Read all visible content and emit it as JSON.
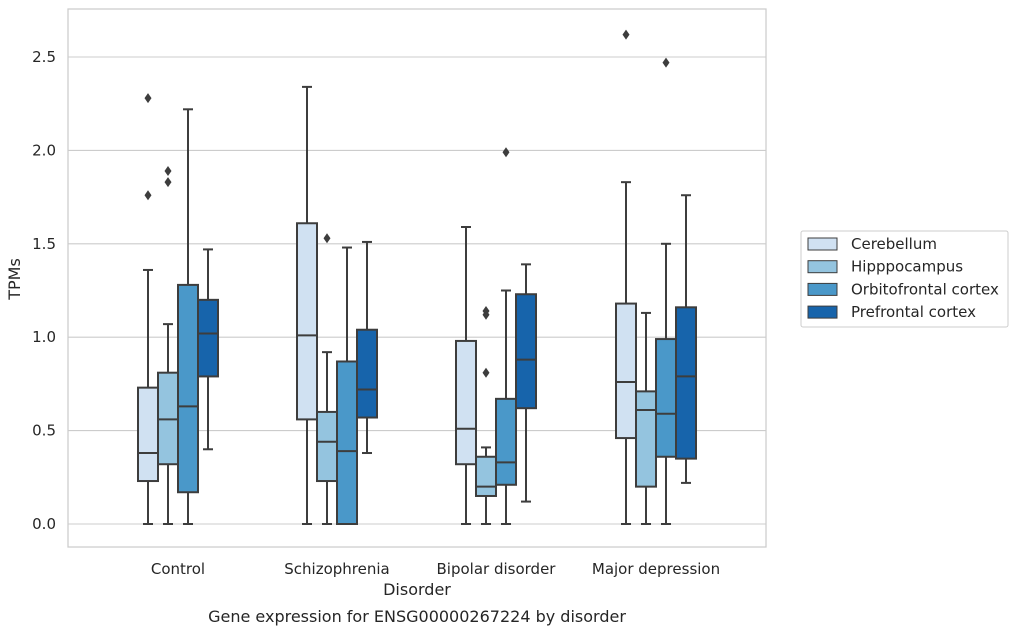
{
  "chart_data": {
    "type": "box",
    "caption": "Gene expression for ENSG00000267224 by disorder",
    "xlabel": "Disorder",
    "ylabel": "TPMs",
    "ylim": [
      -0.13,
      2.75
    ],
    "yticks": [
      "0.0",
      "0.5",
      "1.0",
      "1.5",
      "2.0",
      "2.5"
    ],
    "categories": [
      "Control",
      "Schizophrenia",
      "Bipolar disorder",
      "Major depression"
    ],
    "grid": "horizontal",
    "legend_position": "right",
    "series": [
      {
        "name": "Cerebellum",
        "color": "#d0e1f2",
        "boxes": [
          {
            "whislo": 0.0,
            "q1": 0.23,
            "med": 0.38,
            "q3": 0.73,
            "whishi": 1.36,
            "fliers": [
              1.76,
              2.28
            ]
          },
          {
            "whislo": 0.0,
            "q1": 0.56,
            "med": 1.01,
            "q3": 1.61,
            "whishi": 2.34,
            "fliers": []
          },
          {
            "whislo": 0.0,
            "q1": 0.32,
            "med": 0.51,
            "q3": 0.98,
            "whishi": 1.59,
            "fliers": []
          },
          {
            "whislo": 0.0,
            "q1": 0.46,
            "med": 0.76,
            "q3": 1.18,
            "whishi": 1.83,
            "fliers": [
              2.62
            ]
          }
        ]
      },
      {
        "name": "Hipppocampus",
        "color": "#94c4df",
        "boxes": [
          {
            "whislo": 0.0,
            "q1": 0.32,
            "med": 0.56,
            "q3": 0.81,
            "whishi": 1.07,
            "fliers": [
              1.83,
              1.89
            ]
          },
          {
            "whislo": 0.0,
            "q1": 0.23,
            "med": 0.44,
            "q3": 0.6,
            "whishi": 0.92,
            "fliers": [
              1.53
            ]
          },
          {
            "whislo": 0.0,
            "q1": 0.15,
            "med": 0.2,
            "q3": 0.36,
            "whishi": 0.41,
            "fliers": [
              0.81,
              1.12,
              1.14
            ]
          },
          {
            "whislo": 0.0,
            "q1": 0.2,
            "med": 0.61,
            "q3": 0.71,
            "whishi": 1.13,
            "fliers": []
          }
        ]
      },
      {
        "name": "Orbitofrontal cortex",
        "color": "#4a98c9",
        "boxes": [
          {
            "whislo": 0.0,
            "q1": 0.17,
            "med": 0.63,
            "q3": 1.28,
            "whishi": 2.22,
            "fliers": []
          },
          {
            "whislo": 0.0,
            "q1": 0.0,
            "med": 0.39,
            "q3": 0.87,
            "whishi": 1.48,
            "fliers": []
          },
          {
            "whislo": 0.0,
            "q1": 0.21,
            "med": 0.33,
            "q3": 0.67,
            "whishi": 1.25,
            "fliers": [
              1.99
            ]
          },
          {
            "whislo": 0.0,
            "q1": 0.36,
            "med": 0.59,
            "q3": 0.99,
            "whishi": 1.5,
            "fliers": [
              2.47
            ]
          }
        ]
      },
      {
        "name": "Prefrontal cortex",
        "color": "#1764ab",
        "boxes": [
          {
            "whislo": 0.4,
            "q1": 0.79,
            "med": 1.02,
            "q3": 1.2,
            "whishi": 1.47,
            "fliers": []
          },
          {
            "whislo": 0.38,
            "q1": 0.57,
            "med": 0.72,
            "q3": 1.04,
            "whishi": 1.51,
            "fliers": []
          },
          {
            "whislo": 0.12,
            "q1": 0.62,
            "med": 0.88,
            "q3": 1.23,
            "whishi": 1.39,
            "fliers": []
          },
          {
            "whislo": 0.22,
            "q1": 0.35,
            "med": 0.79,
            "q3": 1.16,
            "whishi": 1.76,
            "fliers": []
          }
        ]
      }
    ]
  }
}
